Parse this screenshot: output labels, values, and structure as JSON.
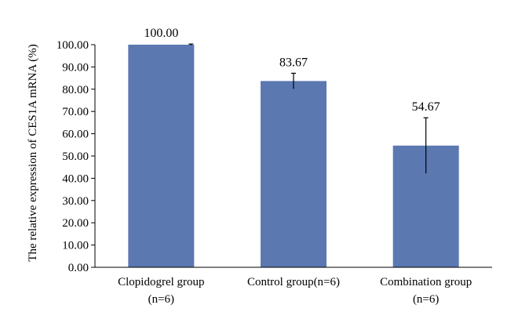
{
  "chart_data": {
    "type": "bar",
    "title": "",
    "xlabel": "",
    "ylabel": "The relative expression of CES1A mRNA (%)",
    "ylim": [
      0,
      100
    ],
    "yticks": [
      "0.00",
      "10.00",
      "20.00",
      "30.00",
      "40.00",
      "50.00",
      "60.00",
      "70.00",
      "80.00",
      "90.00",
      "100.00"
    ],
    "grid": false,
    "legend": "none",
    "bar_color": "#5b78b1",
    "categories": [
      [
        "Clopidogrel group",
        "(n=6)"
      ],
      [
        "Control group(n=6)"
      ],
      [
        "Combination group",
        "(n=6)"
      ]
    ],
    "values": [
      100.0,
      83.67,
      54.67
    ],
    "value_labels": [
      "100.00",
      "83.67",
      "54.67"
    ],
    "error": [
      0.3,
      3.5,
      12.5
    ]
  }
}
